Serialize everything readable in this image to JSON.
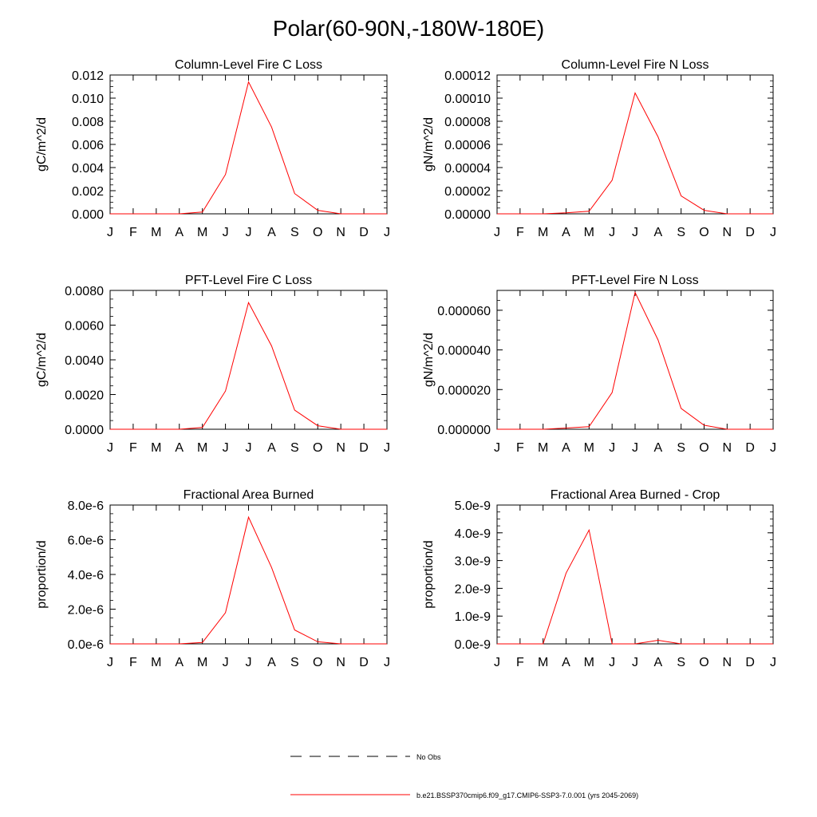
{
  "page": {
    "title": "Polar(60-90N,-180W-180E)"
  },
  "months": [
    "J",
    "F",
    "M",
    "A",
    "M",
    "J",
    "J",
    "A",
    "S",
    "O",
    "N",
    "D",
    "J"
  ],
  "colors": {
    "model_line": "#ff0000",
    "obs_line": "#000000",
    "frame": "#000000"
  },
  "legend": {
    "obs_label": "No Obs",
    "model_label": "b.e21.BSSP370cmip6.f09_g17.CMIP6-SSP3-7.0.001 (yrs 2045-2069)"
  },
  "chart_data": [
    {
      "type": "line",
      "title": "Column-Level Fire C Loss",
      "ylabel": "gC/m^2/d",
      "ylim": [
        0,
        0.012
      ],
      "yticks": [
        0,
        0.002,
        0.004,
        0.006,
        0.008,
        0.01,
        0.012
      ],
      "ytick_labels": [
        "0.000",
        "0.002",
        "0.004",
        "0.006",
        "0.008",
        "0.010",
        "0.012"
      ],
      "x": [
        1,
        2,
        3,
        4,
        5,
        6,
        7,
        8,
        9,
        10,
        11,
        12,
        13
      ],
      "series": [
        {
          "values": [
            0,
            0,
            0,
            0,
            0.00015,
            0.0034,
            0.0114,
            0.0075,
            0.00175,
            0.0003,
            0,
            0,
            0
          ]
        }
      ]
    },
    {
      "type": "line",
      "title": "Column-Level Fire N Loss",
      "ylabel": "gN/m^2/d",
      "ylim": [
        0,
        0.00012
      ],
      "yticks": [
        0,
        2e-05,
        4e-05,
        6e-05,
        8e-05,
        0.0001,
        0.00012
      ],
      "ytick_labels": [
        "0.00000",
        "0.00002",
        "0.00004",
        "0.00006",
        "0.00008",
        "0.00010",
        "0.00012"
      ],
      "x": [
        1,
        2,
        3,
        4,
        5,
        6,
        7,
        8,
        9,
        10,
        11,
        12,
        13
      ],
      "series": [
        {
          "values": [
            0,
            0,
            0,
            8e-07,
            2.2e-06,
            2.9e-05,
            0.0001045,
            6.65e-05,
            1.55e-05,
            3e-06,
            0,
            0,
            0
          ]
        }
      ]
    },
    {
      "type": "line",
      "title": "PFT-Level Fire C Loss",
      "ylabel": "gC/m^2/d",
      "ylim": [
        0,
        0.008
      ],
      "yticks": [
        0,
        0.002,
        0.004,
        0.006,
        0.008
      ],
      "ytick_labels": [
        "0.0000",
        "0.0020",
        "0.0040",
        "0.0060",
        "0.0080"
      ],
      "x": [
        1,
        2,
        3,
        4,
        5,
        6,
        7,
        8,
        9,
        10,
        11,
        12,
        13
      ],
      "series": [
        {
          "values": [
            0,
            0,
            0,
            0,
            0.0001,
            0.0022,
            0.0073,
            0.0048,
            0.0011,
            0.0002,
            0,
            0,
            0
          ]
        }
      ]
    },
    {
      "type": "line",
      "title": "PFT-Level Fire N Loss",
      "ylabel": "gN/m^2/d",
      "ylim": [
        0,
        7e-05
      ],
      "yticks": [
        0,
        2e-05,
        4e-05,
        6e-05
      ],
      "ytick_labels": [
        "0.000000",
        "0.000020",
        "0.000040",
        "0.000060"
      ],
      "x": [
        1,
        2,
        3,
        4,
        5,
        6,
        7,
        8,
        9,
        10,
        11,
        12,
        13
      ],
      "series": [
        {
          "values": [
            0,
            0,
            0,
            6e-07,
            1.3e-06,
            1.85e-05,
            6.9e-05,
            4.5e-05,
            1.05e-05,
            2e-06,
            0,
            0,
            0
          ]
        }
      ]
    },
    {
      "type": "line",
      "title": "Fractional Area Burned",
      "ylabel": "proportion/d",
      "ylim": [
        0,
        8e-06
      ],
      "yticks": [
        0,
        2e-06,
        4e-06,
        6e-06,
        8e-06
      ],
      "ytick_labels": [
        "0.0e-6",
        "2.0e-6",
        "4.0e-6",
        "6.0e-6",
        "8.0e-6"
      ],
      "x": [
        1,
        2,
        3,
        4,
        5,
        6,
        7,
        8,
        9,
        10,
        11,
        12,
        13
      ],
      "series": [
        {
          "values": [
            0,
            0,
            0,
            0,
            8e-08,
            1.8e-06,
            7.3e-06,
            4.4e-06,
            8e-07,
            1.2e-07,
            0,
            0,
            0
          ]
        }
      ]
    },
    {
      "type": "line",
      "title": "Fractional Area Burned - Crop",
      "ylabel": "proportion/d",
      "ylim": [
        0,
        5e-09
      ],
      "yticks": [
        0,
        1e-09,
        2e-09,
        3e-09,
        4e-09,
        5e-09
      ],
      "ytick_labels": [
        "0.0e-9",
        "1.0e-9",
        "2.0e-9",
        "3.0e-9",
        "4.0e-9",
        "5.0e-9"
      ],
      "x": [
        1,
        2,
        3,
        4,
        5,
        6,
        7,
        8,
        9,
        10,
        11,
        12,
        13
      ],
      "series": [
        {
          "values": [
            0,
            0,
            0,
            2.55e-09,
            4.1e-09,
            0,
            0,
            1.3e-10,
            0,
            0,
            0,
            0,
            0
          ]
        }
      ]
    }
  ]
}
